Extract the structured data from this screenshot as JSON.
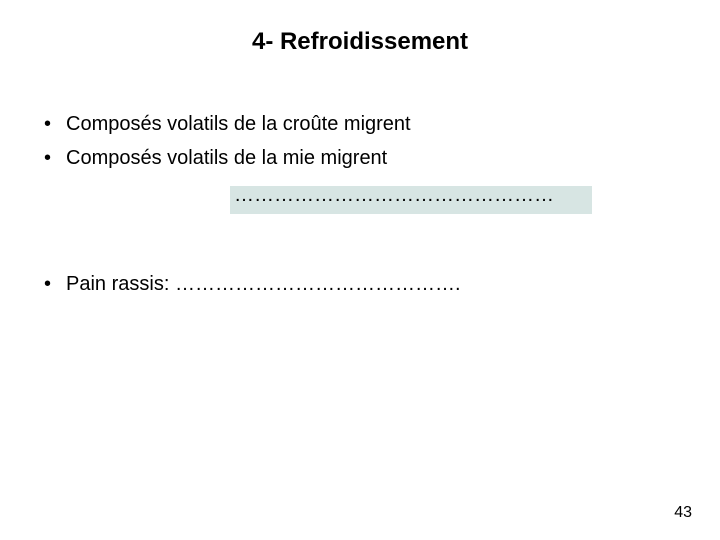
{
  "title": "4- Refroidissement",
  "bullets": [
    "Composés volatils de la croûte migrent",
    "Composés volatils de la mie migrent"
  ],
  "dotted_line": "…………………………………………",
  "bullet3_prefix": "Pain rassis: ",
  "bullet3_dots": "…………………………………….",
  "page_number": "43",
  "colors": {
    "highlight_bg": "#d7e5e3",
    "text": "#000000",
    "page_bg": "#ffffff"
  },
  "bullet_char": "•"
}
